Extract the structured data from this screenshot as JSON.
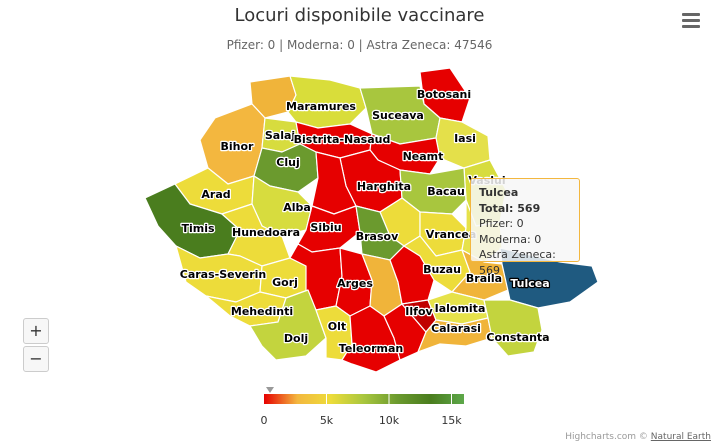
{
  "title": "Locuri disponibile vaccinare",
  "subtitle": "Pfizer: 0 | Moderna: 0 | Astra Zeneca: 47546",
  "menu_icon": "hamburger-icon",
  "zoom": {
    "in_label": "+",
    "out_label": "−"
  },
  "counties": [
    {
      "id": "maramures",
      "label": "Maramures",
      "color": "#d9dd3a"
    },
    {
      "id": "satumare",
      "label": "",
      "color": "#f0b43a"
    },
    {
      "id": "botosani",
      "label": "Botosani",
      "color": "#e60000"
    },
    {
      "id": "suceava",
      "label": "Suceava",
      "color": "#a8c63e"
    },
    {
      "id": "bihor",
      "label": "Bihor",
      "color": "#f3b73f"
    },
    {
      "id": "salaj",
      "label": "Salaj",
      "color": "#d7dc3e"
    },
    {
      "id": "bistrita",
      "label": "Bistrita-Nasaud",
      "color": "#e60000"
    },
    {
      "id": "neamt",
      "label": "Neamt",
      "color": "#e60000"
    },
    {
      "id": "iasi",
      "label": "Iasi",
      "color": "#e4e04a"
    },
    {
      "id": "cluj",
      "label": "Cluj",
      "color": "#6b9a2e"
    },
    {
      "id": "harghita",
      "label": "Harghita",
      "color": "#e60000"
    },
    {
      "id": "bacau",
      "label": "Bacau",
      "color": "#a8c63e"
    },
    {
      "id": "vaslui",
      "label": "Vaslui",
      "color": "#d7dc3e"
    },
    {
      "id": "arad",
      "label": "Arad",
      "color": "#eddc3a"
    },
    {
      "id": "alba",
      "label": "Alba",
      "color": "#d7dc3e"
    },
    {
      "id": "mures",
      "label": "",
      "color": "#e60000"
    },
    {
      "id": "timis",
      "label": "Timis",
      "color": "#4a7d1e"
    },
    {
      "id": "hunedoara",
      "label": "Hunedoara",
      "color": "#eddc3a"
    },
    {
      "id": "sibiu",
      "label": "Sibiu",
      "color": "#e60000"
    },
    {
      "id": "brasov",
      "label": "Brasov",
      "color": "#6b9a2e"
    },
    {
      "id": "covasna",
      "label": "",
      "color": "#eddc3a"
    },
    {
      "id": "vrancea",
      "label": "Vrancea",
      "color": "#eddc3a"
    },
    {
      "id": "galati",
      "label": "",
      "color": "#e6e24a"
    },
    {
      "id": "carasseverin",
      "label": "Caras-Severin",
      "color": "#eddc3a"
    },
    {
      "id": "gorj",
      "label": "Gorj",
      "color": "#eddc3a"
    },
    {
      "id": "valcea",
      "label": "",
      "color": "#e60000"
    },
    {
      "id": "arges",
      "label": "Arges",
      "color": "#e60000"
    },
    {
      "id": "dambovita",
      "label": "",
      "color": "#f0b43a"
    },
    {
      "id": "prahova",
      "label": "",
      "color": "#e60000"
    },
    {
      "id": "buzau",
      "label": "Buzau",
      "color": "#eddc3a"
    },
    {
      "id": "braila",
      "label": "Braila",
      "color": "#f0b43a"
    },
    {
      "id": "tulcea",
      "label": "Tulcea",
      "color": "#1f5a80"
    },
    {
      "id": "mehedinti",
      "label": "Mehedinti",
      "color": "#eddc3a"
    },
    {
      "id": "dolj",
      "label": "Dolj",
      "color": "#c3d43e"
    },
    {
      "id": "olt",
      "label": "Olt",
      "color": "#eddc3a"
    },
    {
      "id": "teleorman",
      "label": "Teleorman",
      "color": "#e60000"
    },
    {
      "id": "giurgiu",
      "label": "",
      "color": "#e60000"
    },
    {
      "id": "ilfov",
      "label": "Ilfov",
      "color": "#c00000"
    },
    {
      "id": "ialomita",
      "label": "Ialomita",
      "color": "#e6e24a"
    },
    {
      "id": "calarasi",
      "label": "Calarasi",
      "color": "#f0b43a"
    },
    {
      "id": "constanta",
      "label": "Constanta",
      "color": "#c3d43e"
    }
  ],
  "tooltip": {
    "title": "Tulcea",
    "total": "Total: 569",
    "pfizer": "Pfizer: 0",
    "moderna": "Moderna: 0",
    "astra": "Astra Zeneca: 569",
    "border_color": "#f3b73f"
  },
  "legend": {
    "ticks": [
      {
        "label": "0",
        "value": 0
      },
      {
        "label": "5k",
        "value": 5000
      },
      {
        "label": "10k",
        "value": 10000
      },
      {
        "label": "15k",
        "value": 15000
      }
    ],
    "max": 16000,
    "marker_value": 0,
    "stops": [
      "#e60000",
      "#f3b73f",
      "#eddc3a",
      "#a8c63e",
      "#6b9a2e",
      "#4a7d1e",
      "#5da84a"
    ]
  },
  "credits": {
    "highcharts": "Highcharts.com © ",
    "natural_earth": "Natural Earth"
  }
}
